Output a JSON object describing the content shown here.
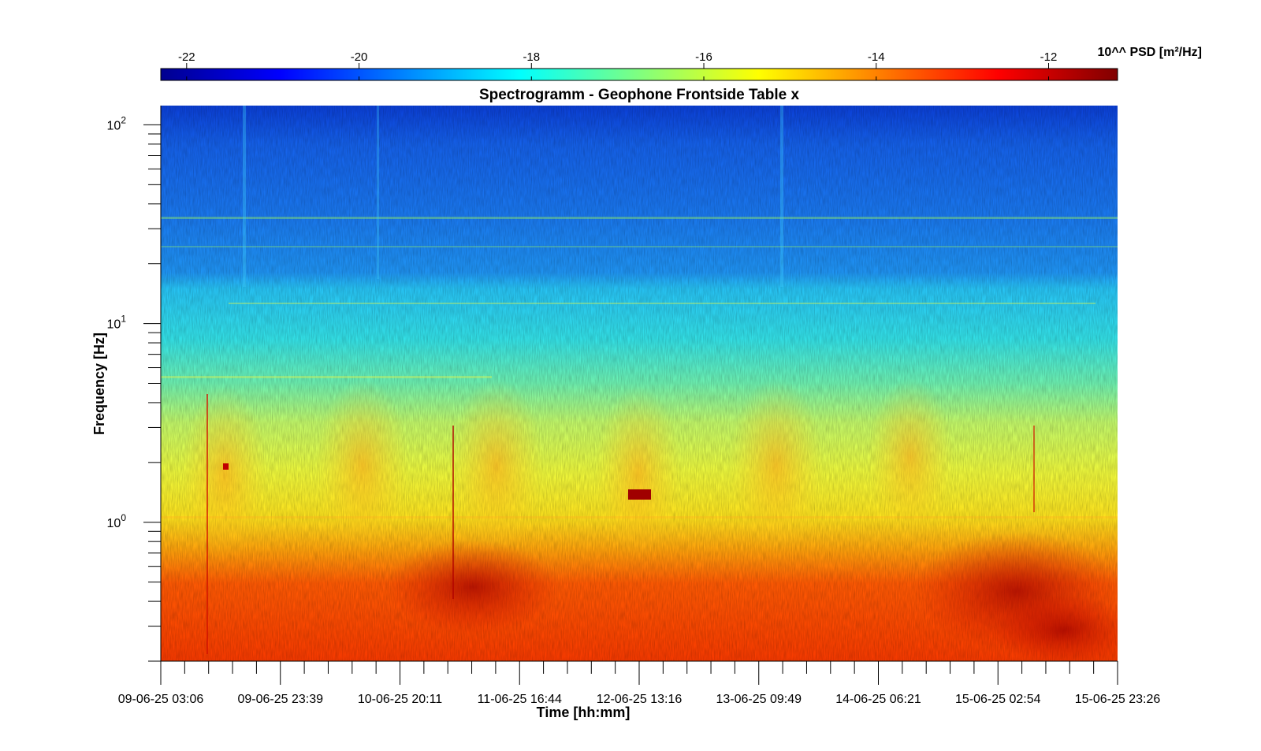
{
  "chart_data": {
    "type": "heatmap",
    "title": "Spectrogramm - Geophone Frontside Table x",
    "xlabel": "Time [hh:mm]",
    "ylabel": "Frequency [Hz]",
    "y_scale": "log",
    "ylim": [
      0.2,
      125
    ],
    "x_tick_labels": [
      "09-06-25 03:06",
      "09-06-25 23:39",
      "10-06-25 20:11",
      "11-06-25 16:44",
      "12-06-25 13:16",
      "13-06-25 09:49",
      "14-06-25 06:21",
      "15-06-25 02:54",
      "15-06-25 23:26"
    ],
    "y_ticks": [
      {
        "base": "10",
        "exp": "0",
        "value": 1
      },
      {
        "base": "10",
        "exp": "1",
        "value": 10
      },
      {
        "base": "10",
        "exp": "2",
        "value": 100
      }
    ],
    "colorbar": {
      "label": "10^^ PSD [m²/Hz]",
      "range": [
        -22.3,
        -11.2
      ],
      "ticks": [
        "-22",
        "-20",
        "-18",
        "-16",
        "-14",
        "-12"
      ],
      "tick_values": [
        -22,
        -20,
        -18,
        -16,
        -14,
        -12
      ],
      "colormap": "jet",
      "colors": [
        "#00008f",
        "#0000ff",
        "#00ffff",
        "#ffff00",
        "#ff0000",
        "#800000"
      ]
    }
  }
}
